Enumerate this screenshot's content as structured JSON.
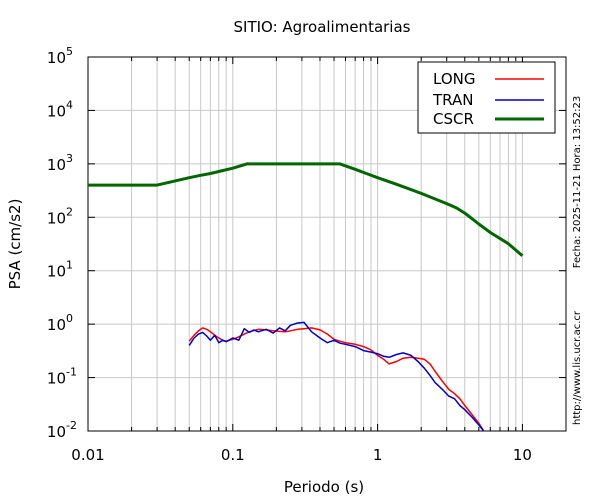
{
  "chart_data": {
    "type": "line",
    "title": "SITIO: Agroalimentarias",
    "xlabel": "Periodo (s)",
    "ylabel": "PSA (cm/s2)",
    "x_scale": "log",
    "y_scale": "log",
    "xlim": [
      0.01,
      20
    ],
    "ylim": [
      0.01,
      100000
    ],
    "grid": true,
    "legend_position": "top-right",
    "x_ticks": [
      {
        "value": 0.01,
        "label": "0.01"
      },
      {
        "value": 0.1,
        "label": "0.1"
      },
      {
        "value": 1,
        "label": "1"
      },
      {
        "value": 10,
        "label": "10"
      }
    ],
    "y_ticks": [
      {
        "value": 0.01,
        "base": "10",
        "exp": "-2"
      },
      {
        "value": 0.1,
        "base": "10",
        "exp": "-1"
      },
      {
        "value": 1,
        "base": "10",
        "exp": "0"
      },
      {
        "value": 10,
        "base": "10",
        "exp": "1"
      },
      {
        "value": 100,
        "base": "10",
        "exp": "2"
      },
      {
        "value": 1000,
        "base": "10",
        "exp": "3"
      },
      {
        "value": 10000,
        "base": "10",
        "exp": "4"
      },
      {
        "value": 100000,
        "base": "10",
        "exp": "5"
      }
    ],
    "series": [
      {
        "name": "LONG",
        "color": "#ff0000",
        "x": [
          0.05,
          0.054,
          0.058,
          0.062,
          0.066,
          0.07,
          0.075,
          0.08,
          0.085,
          0.09,
          0.1,
          0.11,
          0.12,
          0.13,
          0.14,
          0.15,
          0.17,
          0.19,
          0.21,
          0.23,
          0.25,
          0.28,
          0.31,
          0.35,
          0.4,
          0.45,
          0.5,
          0.55,
          0.6,
          0.7,
          0.8,
          0.9,
          1.0,
          1.1,
          1.2,
          1.35,
          1.5,
          1.7,
          1.9,
          2.1,
          2.3,
          2.5,
          2.8,
          3.1,
          3.4,
          3.7,
          4.0,
          4.5,
          5.0,
          5.4
        ],
        "y": [
          0.48,
          0.62,
          0.75,
          0.85,
          0.8,
          0.72,
          0.62,
          0.55,
          0.5,
          0.48,
          0.52,
          0.58,
          0.65,
          0.72,
          0.76,
          0.8,
          0.78,
          0.75,
          0.73,
          0.72,
          0.75,
          0.8,
          0.82,
          0.85,
          0.78,
          0.65,
          0.52,
          0.48,
          0.45,
          0.42,
          0.38,
          0.33,
          0.26,
          0.22,
          0.18,
          0.2,
          0.23,
          0.24,
          0.23,
          0.22,
          0.18,
          0.13,
          0.085,
          0.06,
          0.05,
          0.04,
          0.03,
          0.02,
          0.014,
          0.01
        ]
      },
      {
        "name": "TRAN",
        "color": "#0000cc",
        "x": [
          0.05,
          0.054,
          0.058,
          0.062,
          0.066,
          0.07,
          0.075,
          0.08,
          0.085,
          0.09,
          0.1,
          0.11,
          0.12,
          0.13,
          0.14,
          0.15,
          0.17,
          0.19,
          0.21,
          0.23,
          0.25,
          0.28,
          0.31,
          0.35,
          0.4,
          0.45,
          0.5,
          0.55,
          0.6,
          0.7,
          0.8,
          0.9,
          1.0,
          1.1,
          1.2,
          1.35,
          1.5,
          1.7,
          1.9,
          2.1,
          2.3,
          2.5,
          2.8,
          3.1,
          3.4,
          3.7,
          4.0,
          4.5,
          5.0,
          5.4
        ],
        "y": [
          0.4,
          0.55,
          0.65,
          0.7,
          0.6,
          0.5,
          0.62,
          0.45,
          0.5,
          0.47,
          0.55,
          0.5,
          0.82,
          0.7,
          0.78,
          0.72,
          0.8,
          0.68,
          0.85,
          0.75,
          0.95,
          1.05,
          1.08,
          0.72,
          0.55,
          0.45,
          0.5,
          0.44,
          0.42,
          0.38,
          0.32,
          0.3,
          0.28,
          0.25,
          0.24,
          0.27,
          0.29,
          0.26,
          0.2,
          0.15,
          0.11,
          0.08,
          0.06,
          0.045,
          0.04,
          0.03,
          0.025,
          0.018,
          0.013,
          0.01
        ]
      },
      {
        "name": "CSCR",
        "color": "#006600",
        "x": [
          0.01,
          0.03,
          0.04,
          0.05,
          0.06,
          0.07,
          0.08,
          0.1,
          0.125,
          0.55,
          0.7,
          0.85,
          1.0,
          1.3,
          1.6,
          2.0,
          2.5,
          3.0,
          3.5,
          4.0,
          5.0,
          6.0,
          8.0,
          10.0
        ],
        "y": [
          400,
          400,
          480,
          550,
          610,
          660,
          720,
          830,
          1000,
          1000,
          790,
          650,
          550,
          430,
          350,
          280,
          220,
          180,
          150,
          120,
          75,
          52,
          32,
          19
        ]
      }
    ]
  },
  "side_text": {
    "timestamp": "Fecha: 2025-11-21 Hora: 13:52:23",
    "url": "http://www.lis.ucr.ac.cr"
  }
}
